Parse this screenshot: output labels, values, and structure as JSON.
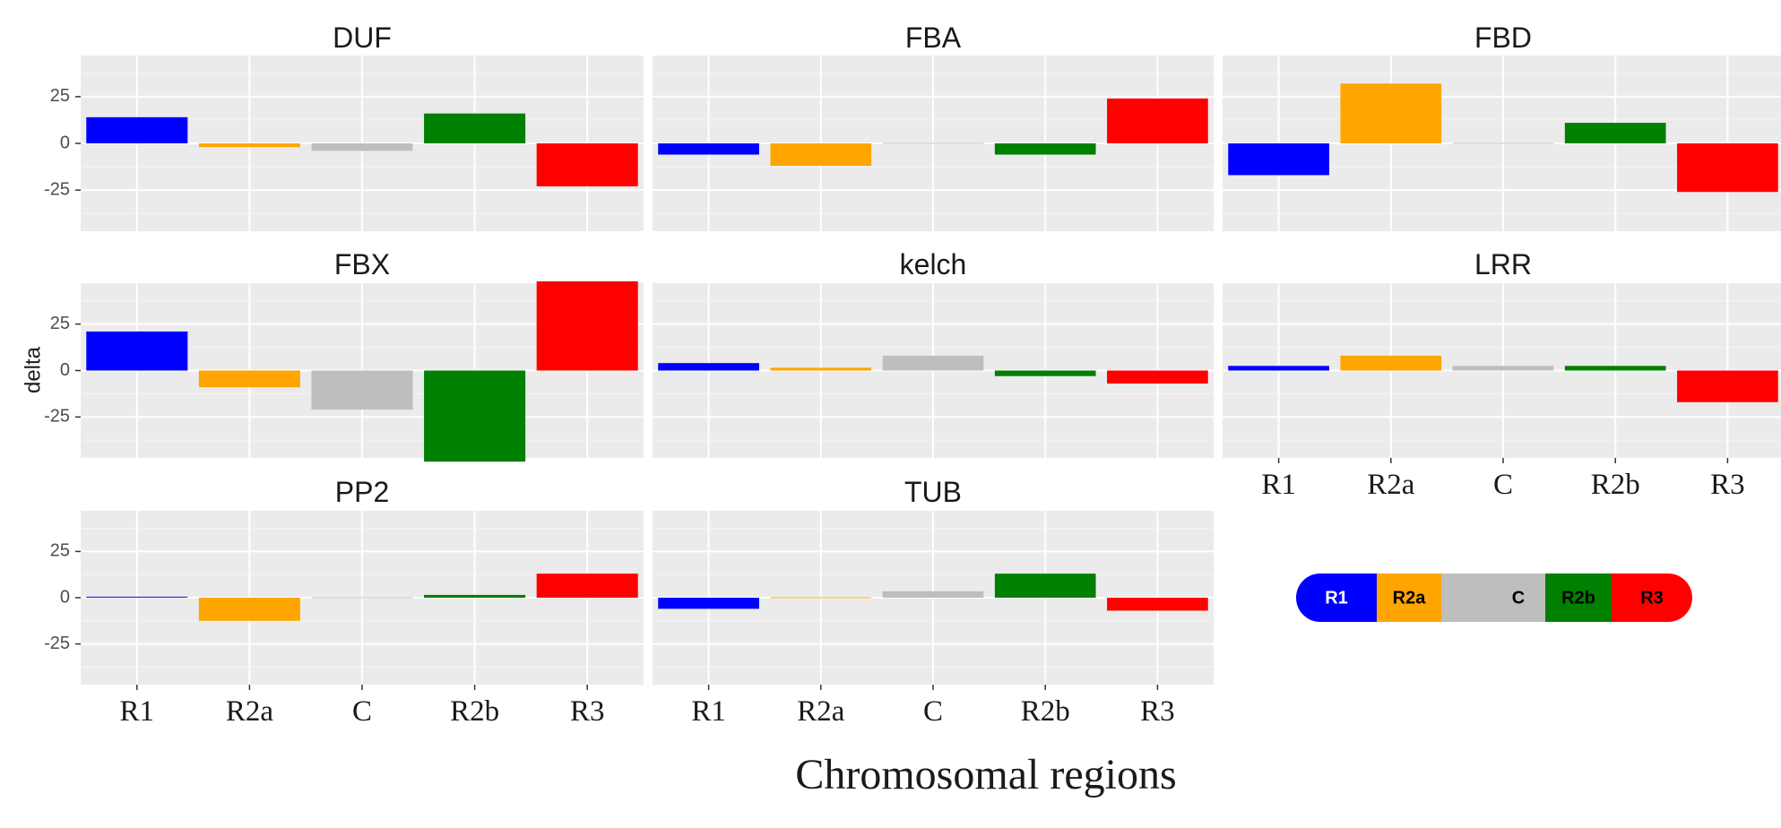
{
  "chart_data": {
    "type": "bar",
    "facet_layout": "3x3 grid, 8 panels, shared axes",
    "categories": [
      "R1",
      "R2a",
      "C",
      "R2b",
      "R3"
    ],
    "colors": {
      "R1": "#0000ff",
      "R2a": "#ffa500",
      "C": "#bebebe",
      "R2b": "#008000",
      "R3": "#ff0000"
    },
    "ylabel": "delta",
    "xlabel": "Chromosomal regions",
    "ylim": [
      -47,
      47
    ],
    "yticks": [
      25,
      0,
      -25
    ],
    "ytick_labels": [
      "25",
      "0",
      "-25"
    ],
    "grid": true,
    "panels": [
      {
        "title": "DUF",
        "values": [
          14,
          -2,
          -4,
          16,
          -23
        ]
      },
      {
        "title": "FBA",
        "values": [
          -6,
          -12,
          0,
          -6,
          24
        ]
      },
      {
        "title": "FBD",
        "values": [
          -17,
          32,
          0,
          11,
          -26
        ]
      },
      {
        "title": "FBX",
        "values": [
          21,
          -9,
          -21,
          -49,
          48
        ]
      },
      {
        "title": "kelch",
        "values": [
          4,
          1.5,
          8,
          -3,
          -7
        ]
      },
      {
        "title": "LRR",
        "values": [
          2.5,
          8,
          2.5,
          2.5,
          -17
        ]
      },
      {
        "title": "PP2",
        "values": [
          0.3,
          -12.5,
          0,
          1.5,
          13
        ]
      },
      {
        "title": "TUB",
        "values": [
          -6,
          0,
          3.5,
          13,
          -7
        ]
      }
    ]
  },
  "legend": {
    "segments": [
      {
        "label": "R1",
        "color": "#0000ff",
        "text_color": "#ffffff"
      },
      {
        "label": "R2a",
        "color": "#ffa500",
        "text_color": "#000000"
      },
      {
        "label": "",
        "color": "#bebebe",
        "text_color": "#000000"
      },
      {
        "label": "C",
        "color": "#bebebe",
        "text_color": "#000000"
      },
      {
        "label": "R2b",
        "color": "#008000",
        "text_color": "#000000"
      },
      {
        "label": "R3",
        "color": "#ff0000",
        "text_color": "#000000"
      }
    ]
  }
}
